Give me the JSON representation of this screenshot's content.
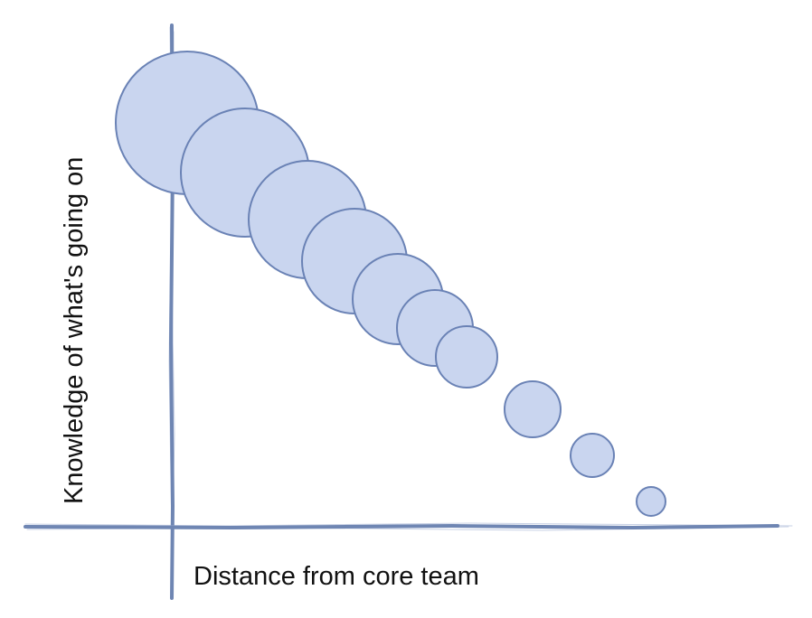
{
  "labels": {
    "y_axis": "Knowledge of what's going on",
    "x_axis": "Distance from core team"
  },
  "bubbles": {
    "count": 10,
    "size_trend": "decreasing along the diagonal, largest at top-left nearest the core team"
  },
  "colors": {
    "axis": "#6f86b3",
    "bubble_fill": "#c9d5ef",
    "bubble_stroke": "#6a82b5",
    "text": "#111111"
  }
}
